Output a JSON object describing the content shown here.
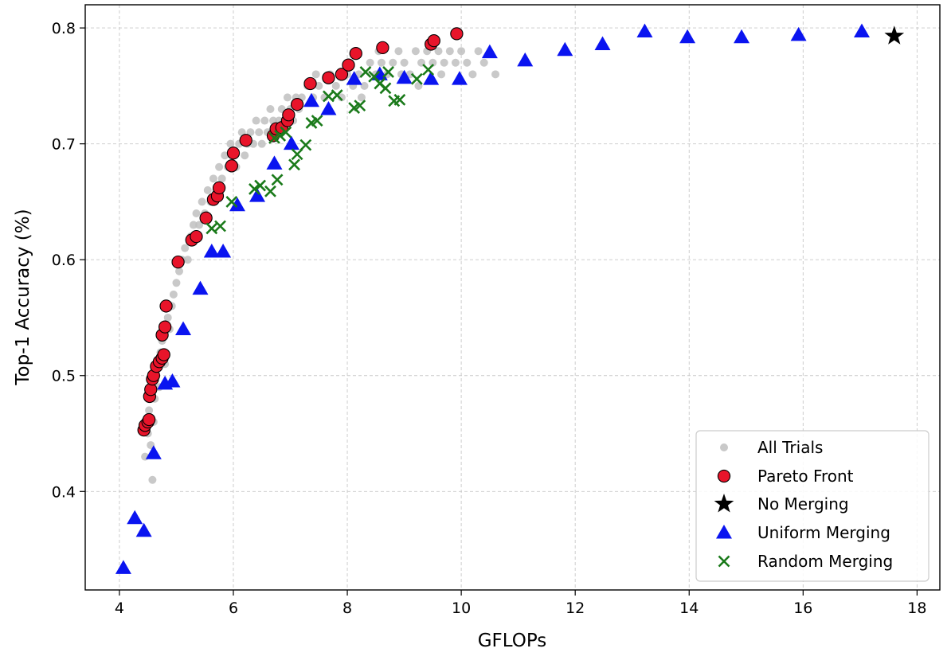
{
  "chart_data": {
    "type": "scatter",
    "xlabel": "GFLOPs",
    "ylabel": "Top-1 Accuracy (%)",
    "xlim": [
      3.4,
      18.4
    ],
    "ylim": [
      0.315,
      0.82
    ],
    "xticks": [
      4,
      6,
      8,
      10,
      12,
      14,
      16,
      18
    ],
    "yticks": [
      0.4,
      0.5,
      0.6,
      0.7,
      0.8
    ],
    "grid": true,
    "legend_position": "bottom-right",
    "colors": {
      "all_trials": "#bfbfbf",
      "pareto": "#e8142a",
      "no_merging": "#000000",
      "uniform": "#0a14f0",
      "random": "#1a7a1a"
    },
    "series": [
      {
        "name": "All Trials",
        "marker": "dot",
        "points": [
          [
            4.45,
            0.43
          ],
          [
            4.5,
            0.45
          ],
          [
            4.52,
            0.47
          ],
          [
            4.55,
            0.44
          ],
          [
            4.58,
            0.41
          ],
          [
            4.6,
            0.46
          ],
          [
            4.62,
            0.48
          ],
          [
            4.65,
            0.5
          ],
          [
            4.7,
            0.49
          ],
          [
            4.72,
            0.52
          ],
          [
            4.75,
            0.53
          ],
          [
            4.8,
            0.51
          ],
          [
            4.85,
            0.55
          ],
          [
            4.88,
            0.54
          ],
          [
            4.92,
            0.56
          ],
          [
            4.95,
            0.57
          ],
          [
            5.0,
            0.58
          ],
          [
            5.05,
            0.59
          ],
          [
            5.1,
            0.6
          ],
          [
            5.15,
            0.61
          ],
          [
            5.2,
            0.6
          ],
          [
            5.25,
            0.62
          ],
          [
            5.3,
            0.63
          ],
          [
            5.35,
            0.64
          ],
          [
            5.4,
            0.63
          ],
          [
            5.45,
            0.65
          ],
          [
            5.5,
            0.64
          ],
          [
            5.55,
            0.66
          ],
          [
            5.6,
            0.65
          ],
          [
            5.65,
            0.67
          ],
          [
            5.7,
            0.66
          ],
          [
            5.75,
            0.68
          ],
          [
            5.8,
            0.67
          ],
          [
            5.85,
            0.69
          ],
          [
            5.9,
            0.68
          ],
          [
            5.95,
            0.7
          ],
          [
            6.0,
            0.69
          ],
          [
            6.05,
            0.68
          ],
          [
            6.1,
            0.7
          ],
          [
            6.15,
            0.71
          ],
          [
            6.2,
            0.69
          ],
          [
            6.25,
            0.7
          ],
          [
            6.3,
            0.71
          ],
          [
            6.35,
            0.7
          ],
          [
            6.4,
            0.72
          ],
          [
            6.45,
            0.71
          ],
          [
            6.5,
            0.7
          ],
          [
            6.55,
            0.72
          ],
          [
            6.6,
            0.71
          ],
          [
            6.65,
            0.73
          ],
          [
            6.7,
            0.72
          ],
          [
            6.75,
            0.71
          ],
          [
            6.8,
            0.72
          ],
          [
            6.85,
            0.73
          ],
          [
            6.9,
            0.72
          ],
          [
            6.95,
            0.74
          ],
          [
            7.0,
            0.73
          ],
          [
            7.05,
            0.72
          ],
          [
            7.1,
            0.74
          ],
          [
            7.15,
            0.73
          ],
          [
            7.2,
            0.74
          ],
          [
            7.3,
            0.75
          ],
          [
            7.4,
            0.74
          ],
          [
            7.5,
            0.75
          ],
          [
            7.6,
            0.74
          ],
          [
            7.7,
            0.76
          ],
          [
            7.8,
            0.75
          ],
          [
            7.9,
            0.74
          ],
          [
            8.0,
            0.76
          ],
          [
            8.1,
            0.75
          ],
          [
            8.2,
            0.76
          ],
          [
            8.3,
            0.75
          ],
          [
            8.4,
            0.77
          ],
          [
            8.5,
            0.76
          ],
          [
            8.6,
            0.77
          ],
          [
            8.7,
            0.76
          ],
          [
            8.8,
            0.77
          ],
          [
            8.9,
            0.78
          ],
          [
            9.0,
            0.77
          ],
          [
            9.1,
            0.76
          ],
          [
            9.2,
            0.78
          ],
          [
            9.3,
            0.77
          ],
          [
            9.4,
            0.78
          ],
          [
            9.5,
            0.77
          ],
          [
            9.6,
            0.78
          ],
          [
            9.7,
            0.77
          ],
          [
            9.8,
            0.78
          ],
          [
            9.9,
            0.77
          ],
          [
            10.0,
            0.78
          ],
          [
            10.1,
            0.77
          ],
          [
            10.2,
            0.76
          ],
          [
            10.3,
            0.78
          ],
          [
            10.4,
            0.77
          ],
          [
            10.6,
            0.76
          ],
          [
            8.25,
            0.74
          ],
          [
            8.55,
            0.78
          ],
          [
            8.95,
            0.76
          ],
          [
            9.25,
            0.75
          ],
          [
            9.65,
            0.76
          ],
          [
            7.45,
            0.76
          ]
        ]
      },
      {
        "name": "Pareto Front",
        "marker": "circle",
        "points": [
          [
            4.43,
            0.453
          ],
          [
            4.45,
            0.457
          ],
          [
            4.5,
            0.46
          ],
          [
            4.52,
            0.462
          ],
          [
            4.53,
            0.482
          ],
          [
            4.55,
            0.488
          ],
          [
            4.58,
            0.497
          ],
          [
            4.6,
            0.5
          ],
          [
            4.65,
            0.508
          ],
          [
            4.7,
            0.512
          ],
          [
            4.75,
            0.515
          ],
          [
            4.78,
            0.518
          ],
          [
            4.75,
            0.535
          ],
          [
            4.8,
            0.542
          ],
          [
            4.82,
            0.56
          ],
          [
            5.03,
            0.598
          ],
          [
            5.27,
            0.617
          ],
          [
            5.35,
            0.62
          ],
          [
            5.52,
            0.636
          ],
          [
            5.65,
            0.652
          ],
          [
            5.72,
            0.655
          ],
          [
            5.75,
            0.662
          ],
          [
            5.97,
            0.681
          ],
          [
            6.0,
            0.692
          ],
          [
            6.22,
            0.703
          ],
          [
            6.7,
            0.707
          ],
          [
            6.75,
            0.713
          ],
          [
            6.85,
            0.714
          ],
          [
            6.95,
            0.72
          ],
          [
            6.97,
            0.725
          ],
          [
            7.12,
            0.734
          ],
          [
            7.35,
            0.752
          ],
          [
            7.67,
            0.757
          ],
          [
            7.9,
            0.76
          ],
          [
            8.02,
            0.768
          ],
          [
            8.15,
            0.778
          ],
          [
            8.62,
            0.783
          ],
          [
            9.47,
            0.786
          ],
          [
            9.52,
            0.789
          ],
          [
            9.92,
            0.795
          ]
        ]
      },
      {
        "name": "No Merging",
        "marker": "star",
        "points": [
          [
            17.6,
            0.793
          ]
        ]
      },
      {
        "name": "Uniform Merging",
        "marker": "triangle",
        "points": [
          [
            4.07,
            0.334
          ],
          [
            4.27,
            0.377
          ],
          [
            4.43,
            0.366
          ],
          [
            4.6,
            0.433
          ],
          [
            4.8,
            0.493
          ],
          [
            4.93,
            0.495
          ],
          [
            5.12,
            0.54
          ],
          [
            5.42,
            0.575
          ],
          [
            5.62,
            0.607
          ],
          [
            5.82,
            0.607
          ],
          [
            6.07,
            0.647
          ],
          [
            6.42,
            0.655
          ],
          [
            6.72,
            0.683
          ],
          [
            7.02,
            0.7
          ],
          [
            7.37,
            0.737
          ],
          [
            7.67,
            0.73
          ],
          [
            8.12,
            0.756
          ],
          [
            8.57,
            0.76
          ],
          [
            9.0,
            0.757
          ],
          [
            9.47,
            0.756
          ],
          [
            9.97,
            0.756
          ],
          [
            10.5,
            0.779
          ],
          [
            11.12,
            0.772
          ],
          [
            11.82,
            0.781
          ],
          [
            12.48,
            0.786
          ],
          [
            13.22,
            0.797
          ],
          [
            13.97,
            0.792
          ],
          [
            14.92,
            0.792
          ],
          [
            15.92,
            0.794
          ],
          [
            17.03,
            0.797
          ]
        ]
      },
      {
        "name": "Random Merging",
        "marker": "x",
        "points": [
          [
            5.62,
            0.627
          ],
          [
            5.77,
            0.629
          ],
          [
            5.97,
            0.65
          ],
          [
            6.37,
            0.661
          ],
          [
            6.47,
            0.664
          ],
          [
            6.65,
            0.659
          ],
          [
            6.77,
            0.669
          ],
          [
            6.72,
            0.705
          ],
          [
            6.82,
            0.707
          ],
          [
            6.92,
            0.71
          ],
          [
            7.07,
            0.682
          ],
          [
            7.12,
            0.691
          ],
          [
            7.27,
            0.699
          ],
          [
            7.37,
            0.718
          ],
          [
            7.47,
            0.72
          ],
          [
            7.67,
            0.741
          ],
          [
            7.82,
            0.742
          ],
          [
            8.12,
            0.731
          ],
          [
            8.22,
            0.733
          ],
          [
            8.32,
            0.762
          ],
          [
            8.47,
            0.758
          ],
          [
            8.57,
            0.752
          ],
          [
            8.67,
            0.748
          ],
          [
            8.72,
            0.762
          ],
          [
            8.82,
            0.737
          ],
          [
            8.92,
            0.738
          ],
          [
            9.22,
            0.756
          ],
          [
            9.42,
            0.764
          ]
        ]
      }
    ]
  }
}
